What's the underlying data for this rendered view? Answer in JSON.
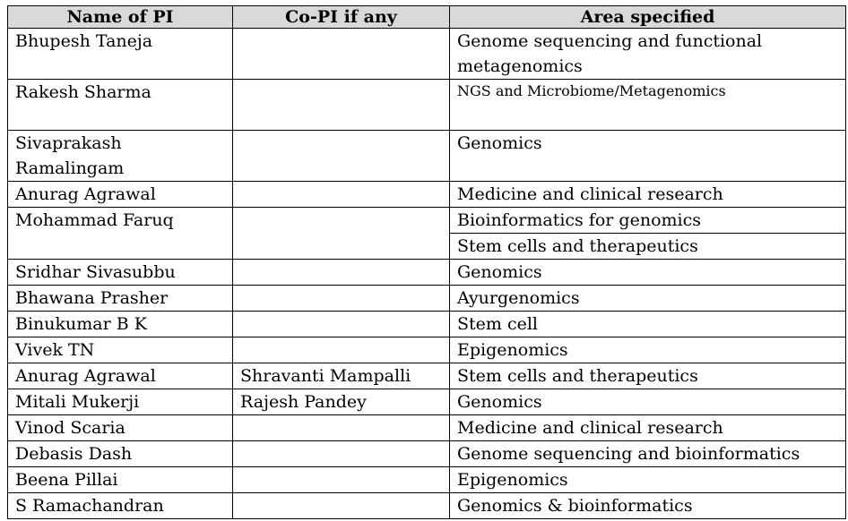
{
  "table": {
    "headers": [
      "Name of PI",
      "Co-PI if any",
      "Area specified"
    ],
    "rows": [
      {
        "pi": "Bhupesh Taneja",
        "copi": "",
        "area": "Genome sequencing and functional metagenomics"
      },
      {
        "pi": "Rakesh Sharma",
        "copi": "",
        "area": "NGS and Microbiome/Metagenomics"
      },
      {
        "pi": "Sivaprakash Ramalingam",
        "copi": "",
        "area": "Genomics"
      },
      {
        "pi": "Anurag Agrawal",
        "copi": "",
        "area": "Medicine and clinical research"
      },
      {
        "pi": "Mohammad Faruq",
        "copi": "",
        "area": "Bioinformatics for genomics",
        "area2": "Stem cells and therapeutics"
      },
      {
        "pi": "Sridhar Sivasubbu",
        "copi": "",
        "area": "Genomics"
      },
      {
        "pi": "Bhawana Prasher",
        "copi": "",
        "area": "Ayurgenomics"
      },
      {
        "pi": "Binukumar B K",
        "copi": "",
        "area": "Stem cell"
      },
      {
        "pi": "Vivek TN",
        "copi": "",
        "area": "Epigenomics"
      },
      {
        "pi": "Anurag Agrawal",
        "copi": "Shravanti Mampalli",
        "area": "Stem cells and therapeutics"
      },
      {
        "pi": "Mitali Mukerji",
        "copi": "Rajesh Pandey",
        "area": "Genomics"
      },
      {
        "pi": "Vinod Scaria",
        "copi": "",
        "area": "Medicine and clinical research"
      },
      {
        "pi": "Debasis Dash",
        "copi": "",
        "area": "Genome sequencing and bioinformatics"
      },
      {
        "pi": "Beena Pillai",
        "copi": "",
        "area": "Epigenomics"
      },
      {
        "pi": "S Ramachandran",
        "copi": "",
        "area": "Genomics & bioinformatics"
      }
    ]
  }
}
